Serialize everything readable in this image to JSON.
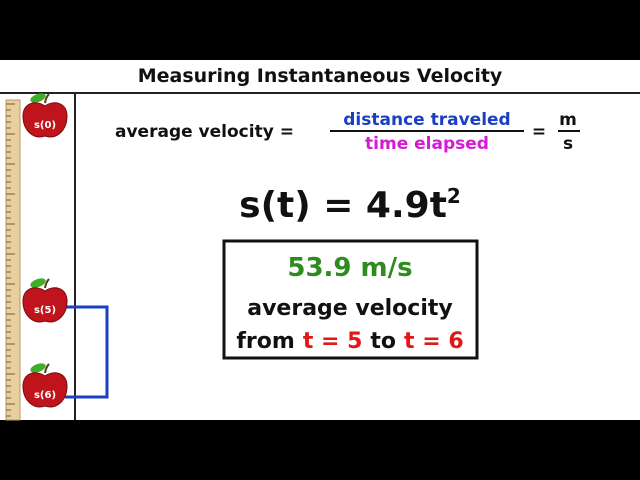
{
  "title": "Measuring Instantaneous Velocity",
  "formula": {
    "left": "average velocity =",
    "numerator": "distance traveled",
    "denominator": "time elapsed",
    "equals": "=",
    "unit_top": "m",
    "unit_bottom": "s"
  },
  "equation": {
    "base": "s(t) = 4.9t",
    "exponent": "2"
  },
  "box": {
    "value": "53.9 m/s",
    "line1": "average velocity",
    "line2": {
      "from": "from",
      "t1": "t = 5",
      "to": "to",
      "t2": "t = 6"
    }
  },
  "apples": [
    "s(0)",
    "s(5)",
    "s(6)"
  ]
}
